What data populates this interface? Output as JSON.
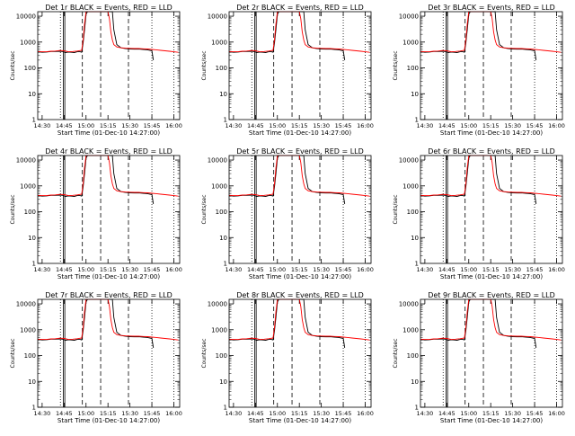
{
  "panels": [
    {
      "title": "Det 1r BLACK = Events, RED = LLD",
      "xlabel": "Start Time (01-Dec-10 14:27:00)",
      "ylabel": "Counts/sec",
      "xticks": [
        "14:30",
        "14:45",
        "15:00",
        "15:15",
        "15:30",
        "15:45",
        "16:00"
      ]
    },
    {
      "title": "Det 2r BLACK = Events, RED = LLD",
      "xlabel": "Start Time (01-Dec-10 14:27:00)",
      "ylabel": "Counts/sec",
      "xticks": [
        "14:30",
        "14:45",
        "15:00",
        "15:15",
        "15:30",
        "15:45",
        "16:00"
      ]
    },
    {
      "title": "Det 3r BLACK = Events, RED = LLD",
      "xlabel": "Start Time (01-Dec-10 14:27:00)",
      "ylabel": "Counts/sec",
      "xticks": [
        "14:30",
        "14:45",
        "15:00",
        "15:15",
        "15:30",
        "15:45",
        "16:00"
      ]
    },
    {
      "title": "Det 4r BLACK = Events, RED = LLD",
      "xlabel": "Start Time (01-Dec-10 14:27:00)",
      "ylabel": "Counts/sec",
      "xticks": [
        "14:30",
        "14:45",
        "15:00",
        "15:15",
        "15:30",
        "15:45",
        "16:00"
      ]
    },
    {
      "title": "Det 5r BLACK = Events, RED = LLD",
      "xlabel": "Start Time (01-Dec-10 14:27:00)",
      "ylabel": "Counts/sec",
      "xticks": [
        "14:30",
        "14:45",
        "15:00",
        "15:15",
        "15:30",
        "15:45",
        "16:00"
      ]
    },
    {
      "title": "Det 6r BLACK = Events, RED = LLD",
      "xlabel": "Start Time (01-Dec-10 14:27:00)",
      "ylabel": "Counts/sec",
      "xticks": [
        "14:30",
        "14:45",
        "15:00",
        "15:15",
        "15:30",
        "15:45",
        "16:00"
      ]
    },
    {
      "title": "Det 7r BLACK = Events, RED = LLD",
      "xlabel": "Start Time (01-Dec-10 14:27:00)",
      "ylabel": "Counts/sec",
      "xticks": [
        "14:30",
        "14:45",
        "15:00",
        "15:15",
        "15:30",
        "15:45",
        "16:00"
      ]
    },
    {
      "title": "Det 8r BLACK = Events, RED = LLD",
      "xlabel": "Start Time (01-Dec-10 14:27:00)",
      "ylabel": "Counts/sec",
      "xticks": [
        "14:30",
        "14:45",
        "15:00",
        "15:15",
        "15:30",
        "15:45",
        "16:00"
      ]
    },
    {
      "title": "Det 9r BLACK = Events, RED = LLD",
      "xlabel": "Start Time (01-Dec-10 14:27:00)",
      "ylabel": "Counts/sec",
      "xticks": [
        "14:30",
        "14:45",
        "15:00",
        "15:15",
        "15:30",
        "15:45",
        "16:00"
      ]
    }
  ],
  "colors": {
    "events": "#000000",
    "lld": "#ff0000",
    "axes": "#000000"
  },
  "chart_data": {
    "type": "line",
    "layout": "3x3 grid",
    "y_scale": "log",
    "ylim": [
      1,
      15000
    ],
    "yticks": [
      1,
      10,
      100,
      1000,
      10000
    ],
    "xlim_minutes_after_start": [
      0,
      97
    ],
    "xtick_minutes": [
      3,
      18,
      33,
      48,
      63,
      78,
      93
    ],
    "vertical_markers": [
      {
        "minute": 15.5,
        "style": "dotted"
      },
      {
        "minute": 17.5,
        "style": "solid"
      },
      {
        "minute": 18.5,
        "style": "solid"
      },
      {
        "minute": 30.5,
        "style": "dashed"
      },
      {
        "minute": 43,
        "style": "dashed"
      },
      {
        "minute": 62,
        "style": "dashed"
      },
      {
        "minute": 78,
        "style": "dotted"
      },
      {
        "minute": 93,
        "style": "dotted"
      }
    ],
    "series": [
      {
        "name": "Events",
        "x": [
          0,
          3,
          6,
          9,
          12,
          15,
          17,
          19,
          21,
          23,
          25,
          27,
          29,
          30,
          31,
          32,
          33,
          34,
          35,
          36,
          37,
          38,
          39,
          40,
          41,
          42,
          43,
          44,
          45,
          46,
          47,
          48,
          49,
          50,
          51,
          52,
          54,
          57,
          60,
          63,
          66,
          69,
          72,
          75,
          78,
          79
        ],
        "y": [
          420,
          400,
          410,
          430,
          430,
          440,
          430,
          390,
          410,
          400,
          390,
          420,
          420,
          400,
          900,
          3000,
          12000,
          15000,
          15000,
          15000,
          15000,
          15000,
          15000,
          15000,
          15000,
          15000,
          15000,
          15000,
          15000,
          15000,
          15000,
          15000,
          15000,
          15000,
          15000,
          3000,
          800,
          600,
          560,
          540,
          530,
          540,
          520,
          500,
          460,
          200
        ]
      },
      {
        "name": "LLD",
        "x": [
          0,
          3,
          6,
          9,
          12,
          15,
          18,
          21,
          24,
          27,
          30,
          31,
          32,
          33,
          34,
          35,
          44,
          45,
          46,
          47,
          48,
          49,
          50,
          51,
          52,
          54,
          57,
          60,
          63,
          66,
          69,
          72,
          75,
          78,
          81,
          84,
          87,
          90,
          93,
          96
        ],
        "y": [
          430,
          420,
          420,
          440,
          450,
          470,
          460,
          420,
          430,
          450,
          480,
          1200,
          5000,
          15000,
          15000,
          15000,
          15000,
          15000,
          15000,
          15000,
          15000,
          8000,
          2500,
          1200,
          800,
          650,
          600,
          580,
          570,
          560,
          560,
          550,
          540,
          520,
          500,
          480,
          460,
          440,
          420,
          400
        ]
      }
    ]
  }
}
